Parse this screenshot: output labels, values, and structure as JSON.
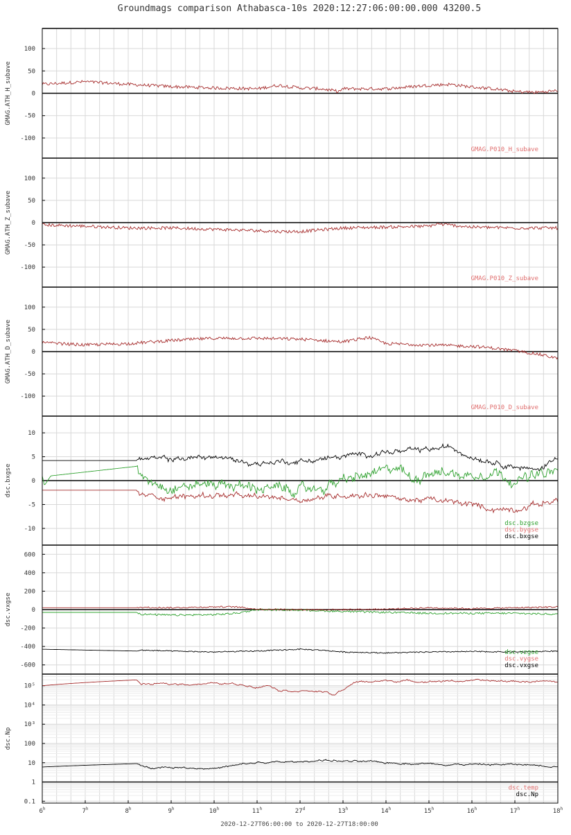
{
  "title": "Groundmags comparison Athabasca-10s 2020:12:27:06:00:00.000 43200.5",
  "footer": "2020-12-27T06:00:00 to 2020-12-27T18:00:00",
  "colors": {
    "red": "#a52a2a",
    "green": "#2ca02c",
    "black": "#000000",
    "legend_red": "#e07070",
    "grid": "#d8d8d8"
  },
  "chart_data": [
    {
      "type": "line",
      "ylabel": "GMAG.ATH_H_subave",
      "ylim": [
        -145,
        145
      ],
      "yticks": [
        100,
        50,
        0,
        -50,
        -100
      ],
      "ytick_labels": [
        "100",
        "50",
        "0",
        "-50",
        "-100"
      ],
      "series": [
        {
          "name": "GMAG.P010_H_subave",
          "color": "#a52a2a",
          "noise": 3.5,
          "walk": 0.0,
          "x": [
            6,
            7,
            8,
            9,
            10,
            11,
            11.5,
            12,
            12.5,
            12.9,
            13,
            14,
            15,
            15.5,
            16,
            16.5,
            17,
            17.5,
            18
          ],
          "y": [
            20,
            26,
            20,
            15,
            12,
            10,
            18,
            12,
            10,
            4,
            10,
            10,
            18,
            20,
            14,
            10,
            4,
            2,
            6
          ]
        }
      ]
    },
    {
      "type": "line",
      "ylabel": "GMAG.ATH_Z_subave",
      "ylim": [
        -145,
        145
      ],
      "yticks": [
        100,
        50,
        0,
        -50,
        -100
      ],
      "ytick_labels": [
        "100",
        "50",
        "0",
        "-50",
        "-100"
      ],
      "series": [
        {
          "name": "GMAG.P010_Z_subave",
          "color": "#a52a2a",
          "noise": 3.5,
          "walk": 0.0,
          "x": [
            6,
            7,
            8,
            9,
            10,
            11,
            11.5,
            12,
            13,
            14,
            15,
            15.2,
            16,
            17,
            18
          ],
          "y": [
            -5,
            -8,
            -12,
            -12,
            -15,
            -18,
            -20,
            -20,
            -12,
            -10,
            -8,
            -3,
            -10,
            -12,
            -12
          ]
        }
      ]
    },
    {
      "type": "line",
      "ylabel": "GMAG.ATH_D_subave",
      "ylim": [
        -145,
        145
      ],
      "yticks": [
        100,
        50,
        0,
        -50,
        -100
      ],
      "ytick_labels": [
        "100",
        "50",
        "0",
        "-50",
        "-100"
      ],
      "series": [
        {
          "name": "GMAG.P010_D_subave",
          "color": "#a52a2a",
          "noise": 3.5,
          "walk": 0.0,
          "x": [
            6,
            7,
            8,
            9,
            10,
            11,
            12,
            13,
            13.6,
            14,
            15,
            16,
            16.5,
            17,
            17.5,
            18
          ],
          "y": [
            20,
            15,
            18,
            25,
            30,
            30,
            28,
            22,
            32,
            18,
            15,
            12,
            8,
            2,
            -5,
            -15
          ]
        }
      ]
    },
    {
      "type": "line",
      "ylabel": "dsc.bxgse",
      "ylim": [
        -13.5,
        13.5
      ],
      "yticks": [
        10,
        5,
        0,
        -5,
        -10
      ],
      "ytick_labels": [
        "10",
        "5",
        "0",
        "-5",
        "-10"
      ],
      "series": [
        {
          "name": "dsc.bzgse",
          "color": "#2ca02c",
          "noise": 0.7,
          "walk": 0.5,
          "x": [
            6,
            6.05,
            6.2,
            7,
            8.2,
            8.3,
            9,
            10,
            11,
            12,
            12.5,
            13,
            13.5,
            14,
            14.3,
            14.6,
            15,
            15.5,
            16,
            16.5,
            17,
            17.5,
            18
          ],
          "y": [
            1,
            -1,
            1,
            1.8,
            3,
            1,
            -1.5,
            -0.5,
            -1.5,
            -2,
            -1.5,
            0,
            1,
            2,
            3,
            0,
            2,
            1.5,
            1,
            2,
            0,
            1,
            2
          ]
        },
        {
          "name": "dsc.bygse",
          "color": "#a52a2a",
          "noise": 0.35,
          "walk": 0.3,
          "x": [
            6,
            8.2,
            8.3,
            9,
            10,
            11,
            11.5,
            12,
            13,
            14,
            14.3,
            15,
            16,
            16.5,
            17,
            17.5,
            18
          ],
          "y": [
            -2,
            -2,
            -3,
            -3.5,
            -3,
            -3.5,
            -3.5,
            -4,
            -3,
            -3,
            -4,
            -4,
            -5,
            -6,
            -6,
            -5,
            -4
          ]
        },
        {
          "name": "dsc.bxgse",
          "color": "#000000",
          "noise": 0.3,
          "walk": 0.3,
          "x": [
            6,
            8.2,
            8.3,
            9,
            10,
            11,
            11.5,
            12,
            13,
            14,
            14.3,
            15,
            15.5,
            16,
            16.5,
            17,
            17.5,
            18
          ],
          "y": [
            4.2,
            4.2,
            4.5,
            4.5,
            5,
            3.5,
            4,
            4,
            5,
            6,
            6,
            6.5,
            7,
            5,
            4,
            3,
            2,
            5
          ]
        }
      ]
    },
    {
      "type": "line",
      "ylabel": "dsc.vxgse",
      "ylim": [
        -700,
        700
      ],
      "yticks": [
        600,
        400,
        200,
        0,
        -200,
        -400,
        -600
      ],
      "ytick_labels": [
        "600",
        "400",
        "200",
        "0",
        "-200",
        "-400",
        "-600"
      ],
      "series": [
        {
          "name": "dsc.vzgse",
          "color": "#2ca02c",
          "noise": 10,
          "walk": 0.0,
          "x": [
            6,
            8.2,
            8.3,
            9,
            10,
            10.5,
            11,
            12,
            13,
            14,
            15,
            16,
            17,
            18
          ],
          "y": [
            -30,
            -30,
            -50,
            -60,
            -55,
            -40,
            0,
            -5,
            -20,
            -30,
            -40,
            -40,
            -40,
            -50
          ]
        },
        {
          "name": "dsc.vygse",
          "color": "#a52a2a",
          "noise": 8,
          "walk": 0.0,
          "x": [
            6,
            8.2,
            8.3,
            9,
            10,
            10.5,
            11,
            12,
            13,
            14,
            15,
            16,
            17,
            18
          ],
          "y": [
            20,
            20,
            25,
            20,
            30,
            30,
            5,
            0,
            0,
            5,
            20,
            10,
            20,
            30
          ]
        },
        {
          "name": "dsc.vxgse",
          "color": "#000000",
          "noise": 6,
          "walk": 0.0,
          "x": [
            6,
            8.2,
            8.3,
            9,
            10,
            11,
            12,
            12.5,
            13,
            14,
            15,
            16,
            17,
            18
          ],
          "y": [
            -430,
            -450,
            -440,
            -450,
            -460,
            -450,
            -430,
            -440,
            -460,
            -470,
            -460,
            -455,
            -460,
            -450
          ]
        }
      ]
    },
    {
      "type": "line",
      "ylabel": "dsc.Np",
      "yscale": "log",
      "ylim": [
        0.08,
        400000
      ],
      "yticks": [
        100000,
        10000,
        1000,
        100,
        10,
        1,
        0.1
      ],
      "ytick_labels": [
        "10⁵",
        "10⁴",
        "10³",
        "100",
        "10",
        "1",
        "0.1"
      ],
      "series": [
        {
          "name": "dsc.temp",
          "color": "#a52a2a",
          "noise": 0.06,
          "walk": 0.0,
          "x": [
            6,
            8.2,
            8.3,
            9,
            10,
            10.5,
            11,
            11.3,
            11.5,
            12,
            12.5,
            12.8,
            13,
            13.3,
            14,
            15,
            16,
            17,
            18
          ],
          "y": [
            100000,
            200000,
            120000,
            120000,
            130000,
            120000,
            90000,
            110000,
            60000,
            55000,
            50000,
            30000,
            60000,
            150000,
            180000,
            170000,
            180000,
            170000,
            160000
          ]
        },
        {
          "name": "dsc.Np",
          "color": "#000000",
          "noise": 0.06,
          "walk": 0.0,
          "x": [
            6,
            8.2,
            8.3,
            9,
            10,
            10.5,
            11,
            12,
            12.5,
            13,
            14,
            15,
            16,
            17,
            18
          ],
          "y": [
            6,
            9,
            6,
            6,
            5,
            7,
            10,
            11,
            14,
            12,
            10,
            9,
            8,
            8,
            7
          ]
        }
      ]
    }
  ],
  "xaxis": {
    "min": 6,
    "max": 18,
    "ticks": [
      {
        "t": 6,
        "num": "6",
        "sup": "h"
      },
      {
        "t": 7,
        "num": "7",
        "sup": "h"
      },
      {
        "t": 8,
        "num": "8",
        "sup": "h"
      },
      {
        "t": 9,
        "num": "9",
        "sup": "h"
      },
      {
        "t": 10,
        "num": "10",
        "sup": "h"
      },
      {
        "t": 11,
        "num": "11",
        "sup": "h"
      },
      {
        "t": 12,
        "num": "27",
        "sup": "d"
      },
      {
        "t": 13,
        "num": "13",
        "sup": "h"
      },
      {
        "t": 14,
        "num": "14",
        "sup": "h"
      },
      {
        "t": 15,
        "num": "15",
        "sup": "h"
      },
      {
        "t": 16,
        "num": "16",
        "sup": "h"
      },
      {
        "t": 17,
        "num": "17",
        "sup": "h"
      },
      {
        "t": 18,
        "num": "18",
        "sup": "h"
      }
    ]
  }
}
